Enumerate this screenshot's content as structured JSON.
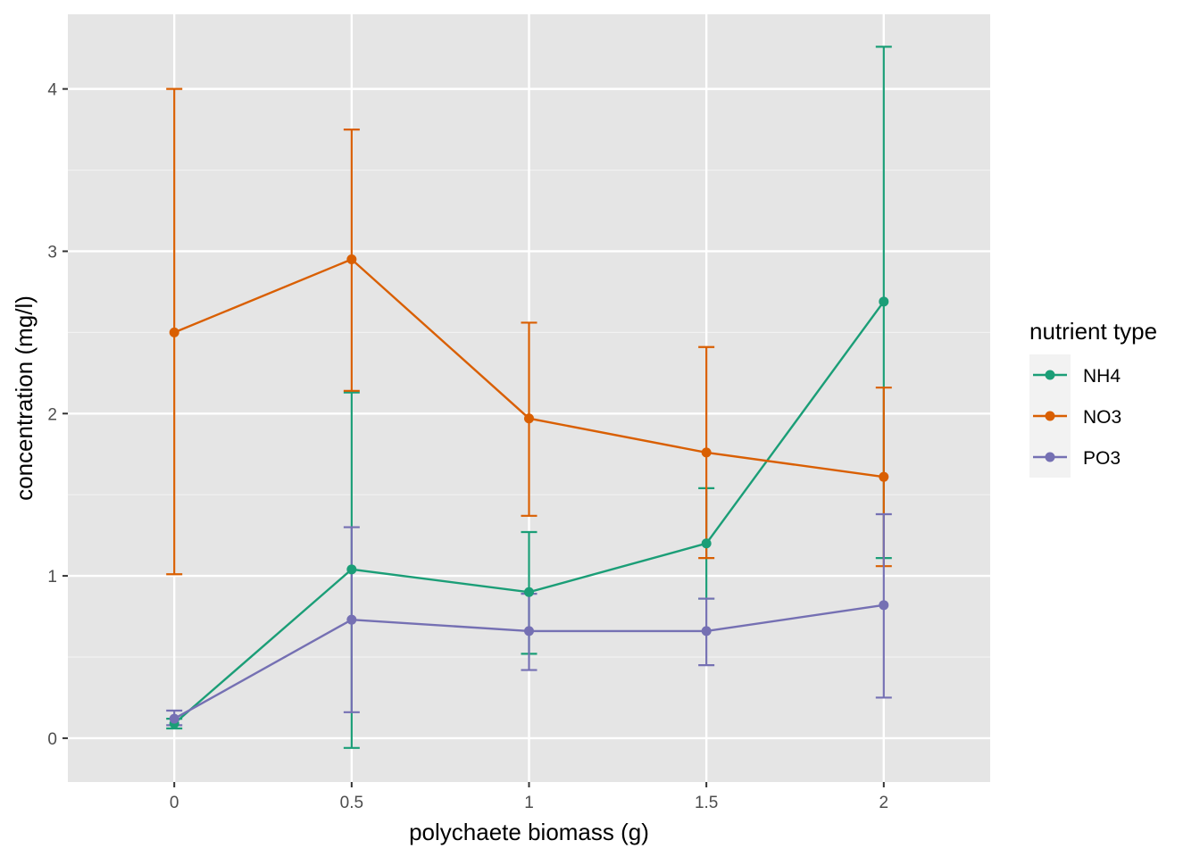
{
  "chart_data": {
    "type": "line",
    "xlabel": "polychaete biomass (g)",
    "ylabel": "concentration (mg/l)",
    "x": [
      0,
      0.5,
      1,
      1.5,
      2
    ],
    "x_tick_labels": [
      "0",
      "0.5",
      "1",
      "1.5",
      "2"
    ],
    "y_ticks": [
      0,
      1,
      2,
      3,
      4
    ],
    "y_tick_labels": [
      "0",
      "1",
      "2",
      "3",
      "4"
    ],
    "xlim": [
      -0.3,
      2.3
    ],
    "ylim": [
      -0.27,
      4.46
    ],
    "grid": true,
    "error_bars": true,
    "legend": {
      "title": "nutrient type",
      "placement": "right"
    },
    "series": [
      {
        "name": "NH4",
        "color": "#1b9e77",
        "values": [
          0.09,
          1.04,
          0.9,
          1.2,
          2.69
        ],
        "lower": [
          0.06,
          -0.06,
          0.52,
          0.86,
          1.11
        ],
        "upper": [
          0.12,
          2.13,
          1.27,
          1.54,
          4.26
        ]
      },
      {
        "name": "NO3",
        "color": "#d95f02",
        "values": [
          2.5,
          2.95,
          1.97,
          1.76,
          1.61
        ],
        "lower": [
          1.01,
          2.14,
          1.37,
          1.11,
          1.06
        ],
        "upper": [
          4.0,
          3.75,
          2.56,
          2.41,
          2.16
        ]
      },
      {
        "name": "PO3",
        "color": "#7570b3",
        "values": [
          0.12,
          0.73,
          0.66,
          0.66,
          0.82
        ],
        "lower": [
          0.08,
          0.16,
          0.42,
          0.45,
          0.25
        ],
        "upper": [
          0.17,
          1.3,
          0.89,
          0.86,
          1.38
        ]
      }
    ]
  }
}
